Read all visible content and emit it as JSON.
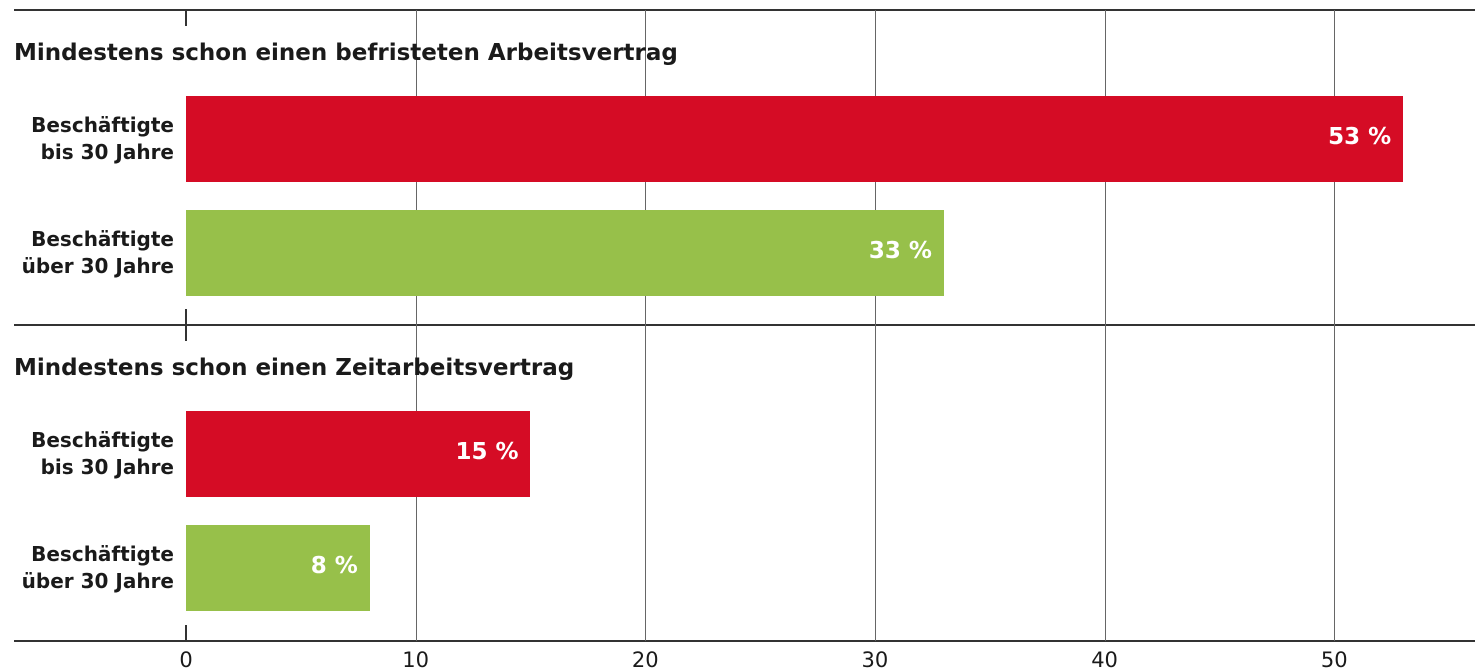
{
  "chart_data": {
    "type": "bar",
    "orientation": "horizontal",
    "groups": [
      {
        "title": "Mindestens schon einen befristeten Arbeitsvertrag",
        "categories": [
          "Beschäftigte bis 30 Jahre",
          "Beschäftigte über 30 Jahre"
        ],
        "values": [
          53,
          33
        ],
        "value_labels": [
          "53 %",
          "33 %"
        ]
      },
      {
        "title": "Mindestens schon einen Zeitarbeitsvertrag",
        "categories": [
          "Beschäftigte bis 30 Jahre",
          "Beschäftigte über 30 Jahre"
        ],
        "values": [
          15,
          8
        ],
        "value_labels": [
          "15 %",
          "8 %"
        ]
      }
    ],
    "colors": [
      "#d50c25",
      "#97c04a"
    ],
    "xlim": [
      0,
      56
    ],
    "xticks": [
      0,
      10,
      20,
      30,
      40,
      50
    ],
    "grid": true
  }
}
